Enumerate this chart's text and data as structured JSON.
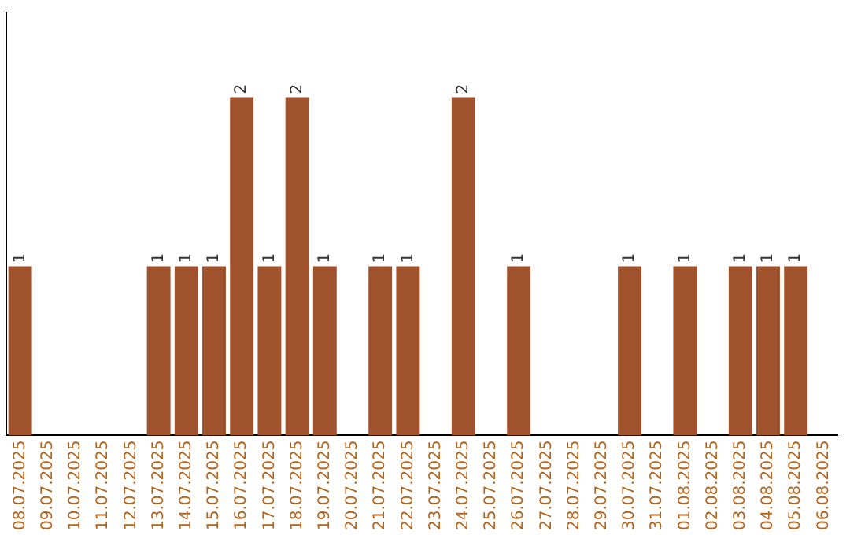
{
  "chart_data": {
    "type": "bar",
    "categories": [
      "08.07.2025",
      "09.07.2025",
      "10.07.2025",
      "11.07.2025",
      "12.07.2025",
      "13.07.2025",
      "14.07.2025",
      "15.07.2025",
      "16.07.2025",
      "17.07.2025",
      "18.07.2025",
      "19.07.2025",
      "20.07.2025",
      "21.07.2025",
      "22.07.2025",
      "23.07.2025",
      "24.07.2025",
      "25.07.2025",
      "26.07.2025",
      "27.07.2025",
      "28.07.2025",
      "29.07.2025",
      "30.07.2025",
      "31.07.2025",
      "01.08.2025",
      "02.08.2025",
      "03.08.2025",
      "04.08.2025",
      "05.08.2025",
      "06.08.2025"
    ],
    "values": [
      1,
      0,
      0,
      0,
      0,
      1,
      1,
      1,
      2,
      1,
      2,
      1,
      0,
      1,
      1,
      0,
      2,
      0,
      1,
      0,
      0,
      0,
      1,
      0,
      1,
      0,
      1,
      1,
      1,
      0
    ],
    "value_labels": [
      "1",
      null,
      null,
      null,
      null,
      "1",
      "1",
      "1",
      "2",
      "1",
      "2",
      "1",
      null,
      "1",
      "1",
      null,
      "2",
      null,
      "1",
      null,
      null,
      null,
      "1",
      null,
      "1",
      null,
      "1",
      "1",
      "1",
      null
    ],
    "color": "#a0522d",
    "grid": false,
    "legend": false,
    "tick_labels": "x"
  }
}
